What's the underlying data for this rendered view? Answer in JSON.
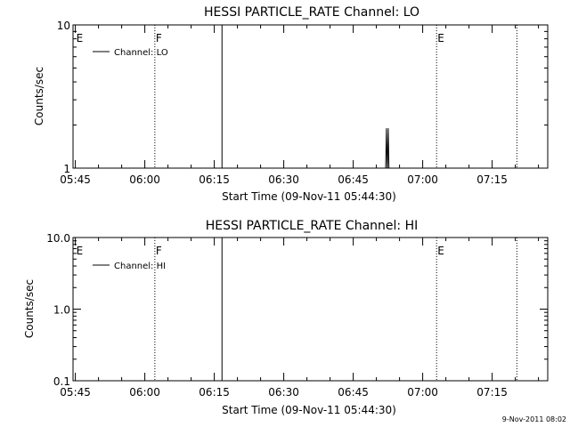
{
  "chart_data": [
    {
      "type": "line",
      "title": "HESSI PARTICLE_RATE Channel: LO",
      "xlabel": "Start Time (09-Nov-11 05:44:30)",
      "ylabel": "Counts/sec",
      "y_scale": "log",
      "xlim": [
        "05:44:30",
        "07:27:00"
      ],
      "ylim": [
        1,
        10
      ],
      "x_ticks": [
        "05:45",
        "06:00",
        "06:15",
        "06:30",
        "06:45",
        "07:00",
        "07:15"
      ],
      "y_ticks": [
        "1",
        "10"
      ],
      "legend": "top-left",
      "series": [
        {
          "name": "Channel: LO",
          "points": [
            {
              "x": "05:44:30",
              "y": null
            },
            {
              "x": "06:15:50",
              "y": null
            },
            {
              "x": "06:52:00",
              "y": 1
            },
            {
              "x": "06:52:10",
              "y": 1.9
            },
            {
              "x": "06:52:20",
              "y": 1
            }
          ]
        }
      ],
      "markers": [
        {
          "label": "E",
          "time": "05:45:00",
          "style": "none"
        },
        {
          "label": "F",
          "time": "06:02:10",
          "style": "dotted"
        },
        {
          "label": "",
          "time": "06:16:40",
          "style": "solid"
        },
        {
          "label": "E",
          "time": "07:03:00",
          "style": "dotted"
        },
        {
          "label": "",
          "time": "07:20:20",
          "style": "dotted"
        }
      ]
    },
    {
      "type": "line",
      "title": "HESSI PARTICLE_RATE Channel: HI",
      "xlabel": "Start Time (09-Nov-11 05:44:30)",
      "ylabel": "Counts/sec",
      "y_scale": "log",
      "xlim": [
        "05:44:30",
        "07:27:00"
      ],
      "ylim": [
        0.1,
        10
      ],
      "x_ticks": [
        "05:45",
        "06:00",
        "06:15",
        "06:30",
        "06:45",
        "07:00",
        "07:15"
      ],
      "y_ticks": [
        "0.1",
        "1.0",
        "10.0"
      ],
      "legend": "top-left",
      "series": [
        {
          "name": "Channel: HI",
          "points": []
        }
      ],
      "markers": [
        {
          "label": "E",
          "time": "05:45:00",
          "style": "none"
        },
        {
          "label": "F",
          "time": "06:02:10",
          "style": "dotted"
        },
        {
          "label": "",
          "time": "06:16:40",
          "style": "solid"
        },
        {
          "label": "E",
          "time": "07:03:00",
          "style": "dotted"
        },
        {
          "label": "",
          "time": "07:20:20",
          "style": "dotted"
        }
      ]
    }
  ],
  "footer": {
    "timestamp": "9-Nov-2011 08:02"
  }
}
